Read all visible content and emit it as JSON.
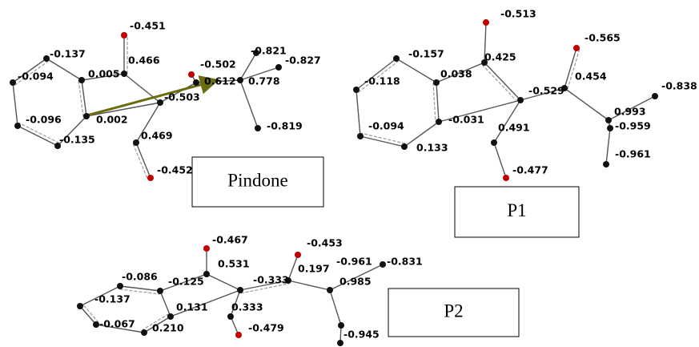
{
  "molecules": [
    {
      "name": "Pindone",
      "charges": [
        "-0.451",
        "-0.137",
        "0.466",
        "-0.094",
        "0.005",
        "-0.502",
        "-0.821",
        "-0.827",
        "0.612",
        "0.778",
        "-0.503",
        "-0.096",
        "0.002",
        "0.469",
        "-0.819",
        "-0.135",
        "-0.452"
      ]
    },
    {
      "name": "P1",
      "charges": [
        "-0.513",
        "-0.565",
        "-0.157",
        "0.425",
        "0.038",
        "0.454",
        "-0.118",
        "-0.529",
        "-0.838",
        "0.993",
        "-0.031",
        "0.491",
        "-0.959",
        "-0.094",
        "0.133",
        "-0.961",
        "-0.477"
      ]
    },
    {
      "name": "P2",
      "charges": [
        "-0.467",
        "-0.453",
        "0.531",
        "0.197",
        "-0.961",
        "-0.831",
        "-0.086",
        "-0.125",
        "-0.333",
        "0.985",
        "-0.137",
        "0.131",
        "0.333",
        "-0.067",
        "0.210",
        "-0.479",
        "-0.945"
      ]
    }
  ]
}
